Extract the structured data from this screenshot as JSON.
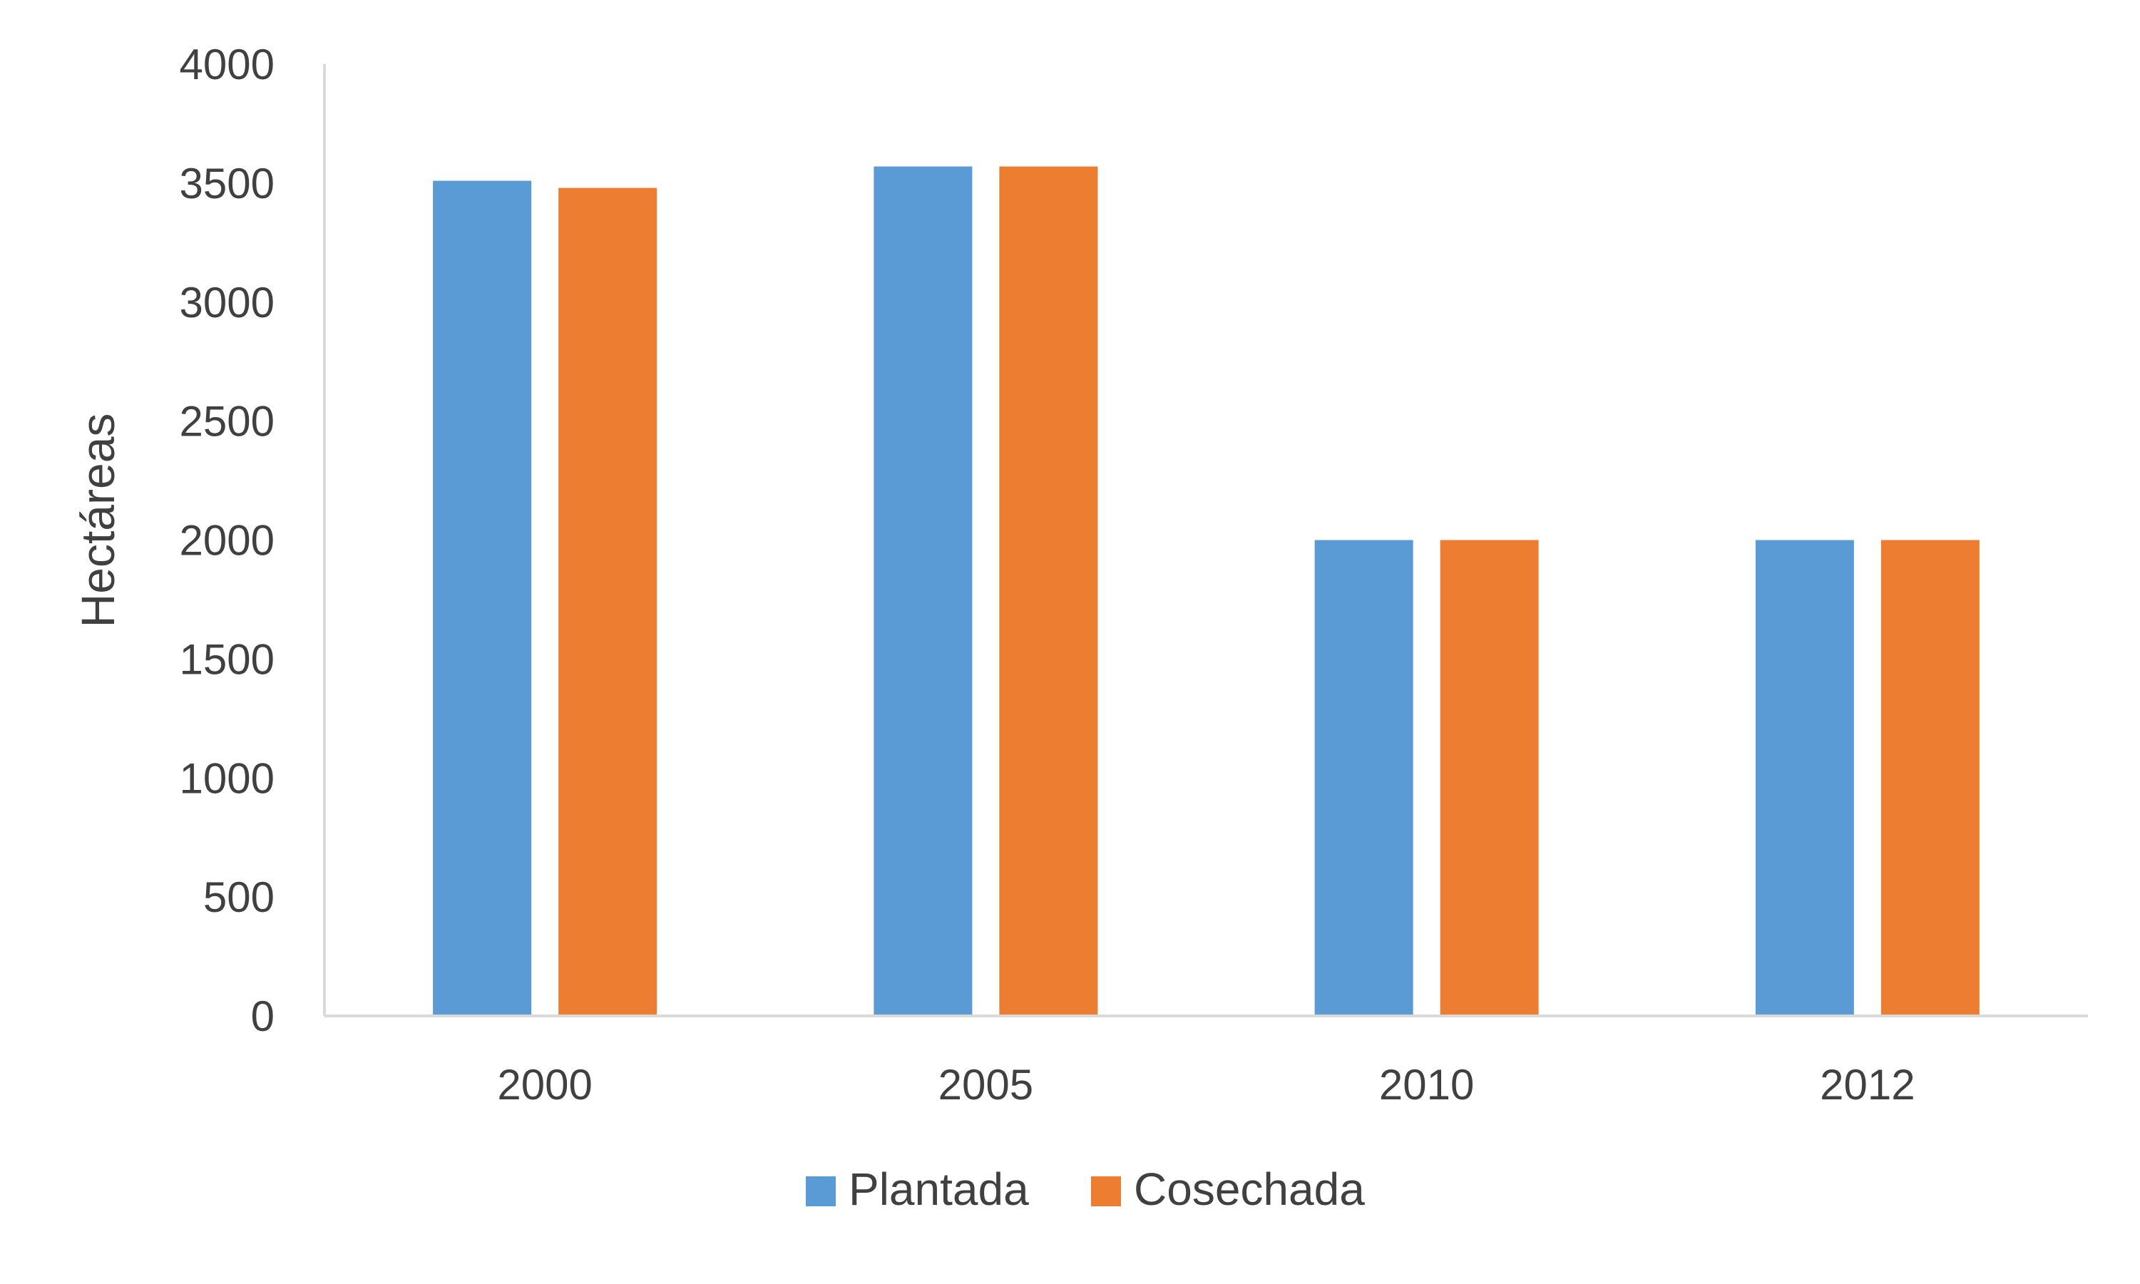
{
  "chart_data": {
    "type": "bar",
    "categories": [
      "2000",
      "2005",
      "2010",
      "2012"
    ],
    "series": [
      {
        "name": "Plantada",
        "values": [
          3510,
          3570,
          2000,
          2000
        ],
        "color": "#5B9BD5"
      },
      {
        "name": "Cosechada",
        "values": [
          3480,
          3570,
          2000,
          2000
        ],
        "color": "#ED7D31"
      }
    ],
    "title": "",
    "xlabel": "",
    "ylabel": "Hectáreas",
    "ylim": [
      0,
      4000
    ],
    "yticks": [
      "0",
      "500",
      "1000",
      "1500",
      "2000",
      "2500",
      "3000",
      "3500",
      "4000"
    ],
    "grid": false,
    "legend_position": "bottom"
  }
}
